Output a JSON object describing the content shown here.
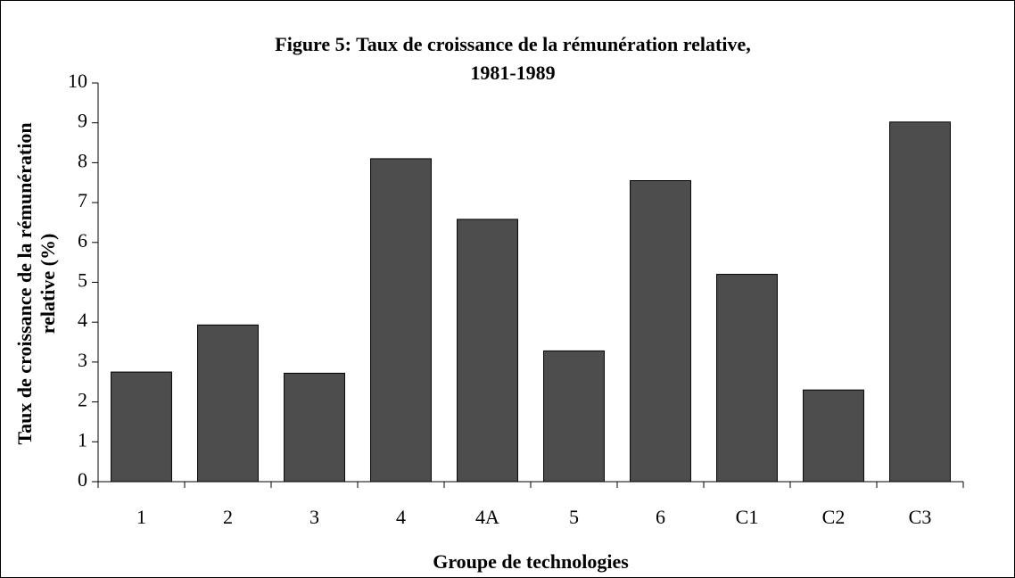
{
  "chart_data": {
    "type": "bar",
    "title": [
      "Figure 5: Taux de croissance de la rémunération relative,",
      "1981-1989"
    ],
    "x_label": "Groupe de technologies",
    "y_label": [
      "Taux de croissance de la rémunération",
      "relative  (%)"
    ],
    "categories": [
      "1",
      "2",
      "3",
      "4",
      "4A",
      "5",
      "6",
      "C1",
      "C2",
      "C3"
    ],
    "values": [
      2.75,
      3.93,
      2.72,
      8.1,
      6.58,
      3.28,
      7.55,
      5.2,
      2.3,
      9.02
    ],
    "color": "#4d4d4d",
    "ylim": [
      0,
      10
    ],
    "yticks": [
      0,
      1,
      2,
      3,
      4,
      5,
      6,
      7,
      8,
      9,
      10
    ],
    "grid": false
  }
}
